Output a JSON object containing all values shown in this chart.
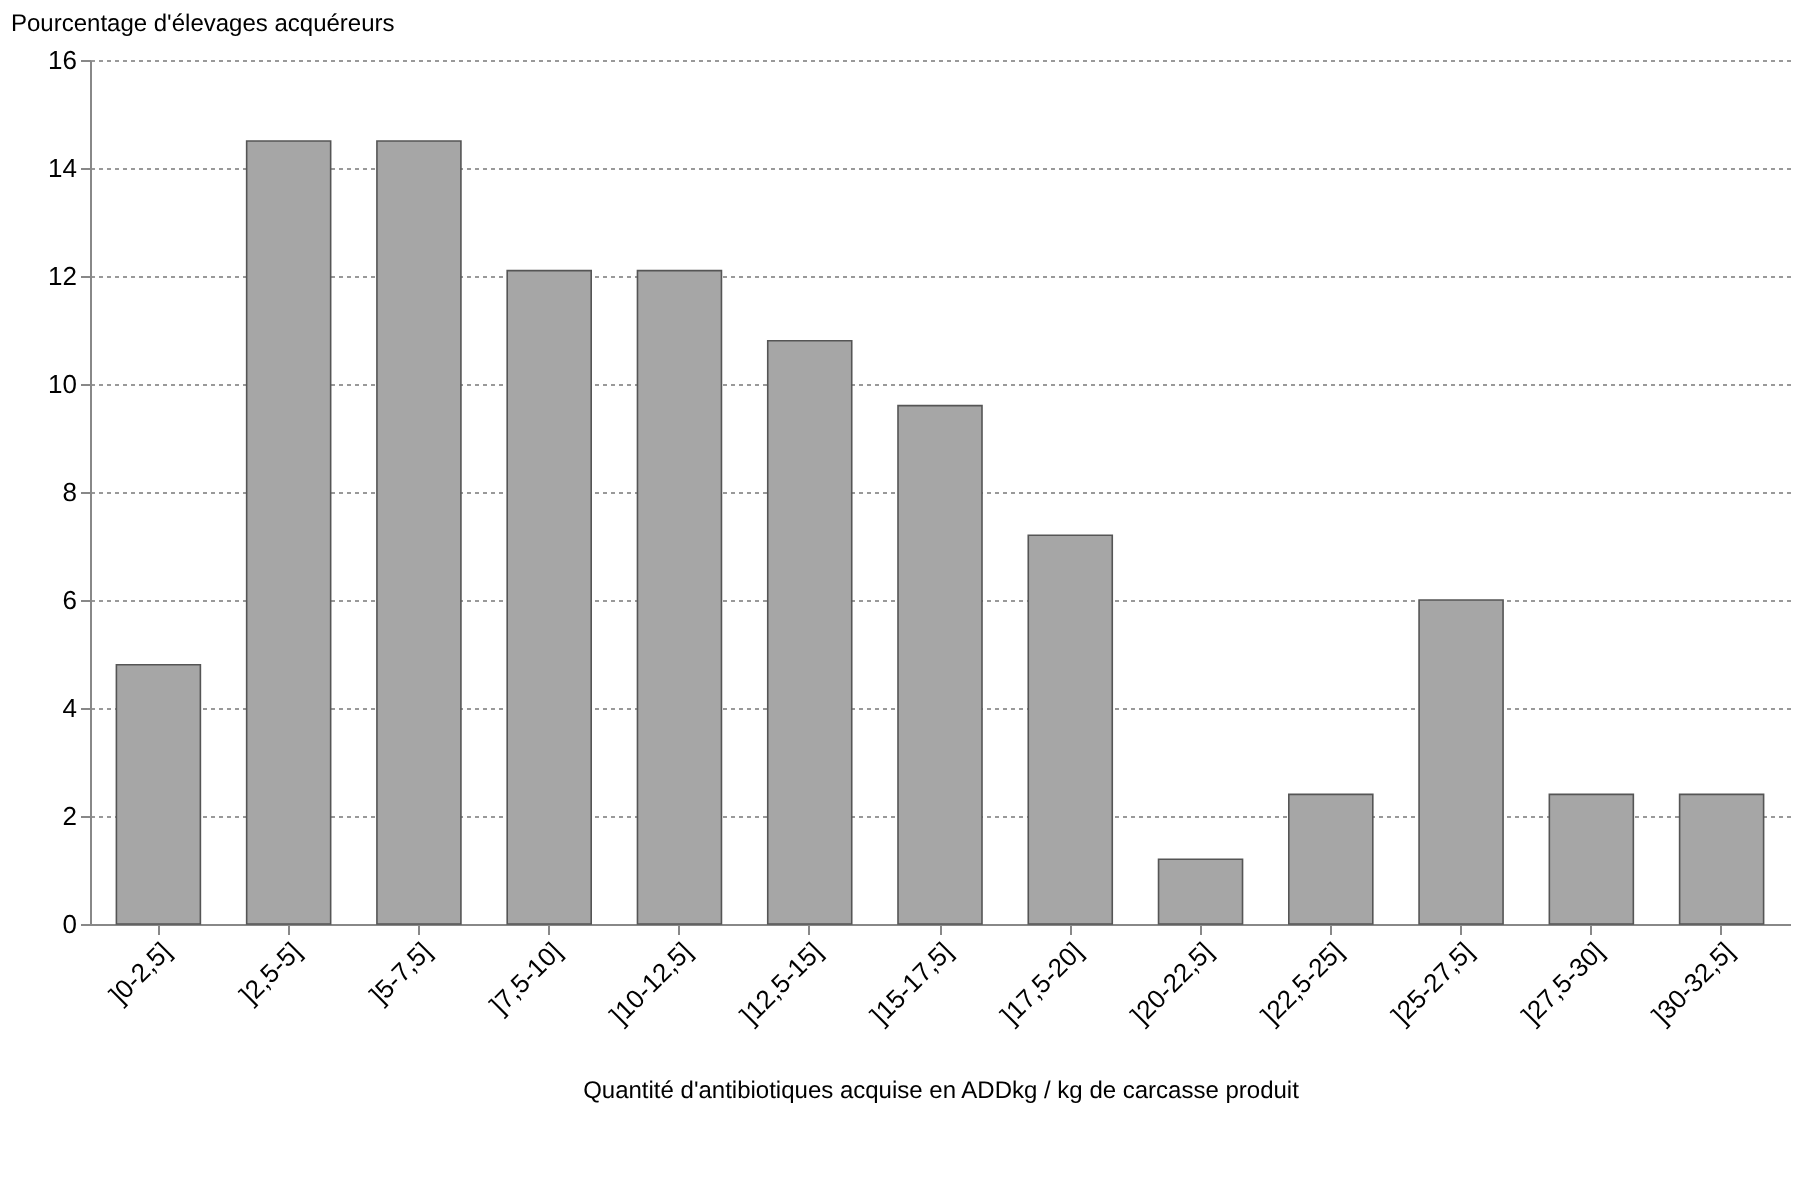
{
  "chart_data": {
    "type": "bar",
    "ylabel": "Pourcentage d'élevages acquéreurs",
    "xlabel": "Quantité d'antibiotiques acquise en ADDkg / kg de carcasse produit",
    "categories": [
      "]0-2,5]",
      "]2,5-5]",
      "]5-7,5]",
      "]7,5-10]",
      "]10-12,5]",
      "]12,5-15]",
      "]15-17,5]",
      "]17,5-20]",
      "]20-22,5]",
      "]22,5-25]",
      "]25-27,5]",
      "]27,5-30]",
      "]30-32,5]"
    ],
    "values": [
      4.8,
      14.5,
      14.5,
      12.1,
      12.1,
      10.8,
      9.6,
      7.2,
      1.2,
      2.4,
      6.0,
      2.4,
      2.4
    ],
    "color": "#a6a6a6",
    "ylim": [
      0,
      16
    ],
    "yticks": [
      0,
      2,
      4,
      6,
      8,
      10,
      12,
      14,
      16
    ],
    "grid": "y"
  }
}
